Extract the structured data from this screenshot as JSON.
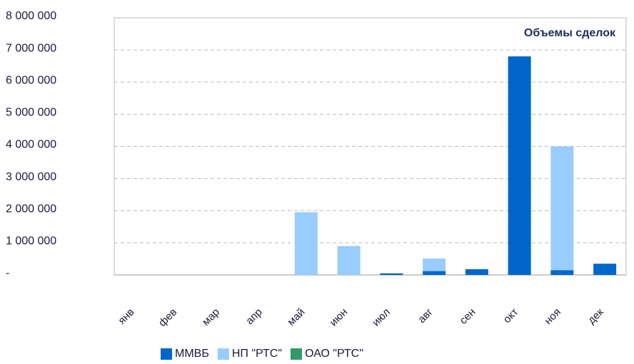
{
  "chart_data": {
    "type": "bar",
    "stacked": true,
    "title": "Объемы сделок",
    "categories": [
      "янв",
      "фев",
      "мар",
      "апр",
      "май",
      "июн",
      "июл",
      "авг",
      "сен",
      "окт",
      "ноя",
      "дек"
    ],
    "series": [
      {
        "name": "ММВБ",
        "color": "#0066cc",
        "values": [
          0,
          0,
          0,
          0,
          0,
          0,
          50000,
          120000,
          180000,
          6800000,
          150000,
          350000
        ]
      },
      {
        "name": "НП \"РТС\"",
        "color": "#99ccff",
        "values": [
          0,
          0,
          0,
          0,
          1950000,
          900000,
          0,
          390000,
          0,
          0,
          3850000,
          0
        ]
      },
      {
        "name": "ОАО \"РТС\"",
        "color": "#339966",
        "values": [
          0,
          0,
          0,
          0,
          0,
          0,
          0,
          0,
          0,
          0,
          0,
          0
        ]
      }
    ],
    "ylim": [
      0,
      8000000
    ],
    "yticks": [
      {
        "value": 0,
        "label": "-"
      },
      {
        "value": 1000000,
        "label": "1 000 000"
      },
      {
        "value": 2000000,
        "label": "2 000 000"
      },
      {
        "value": 3000000,
        "label": "3 000 000"
      },
      {
        "value": 4000000,
        "label": "4 000 000"
      },
      {
        "value": 5000000,
        "label": "5 000 000"
      },
      {
        "value": 6000000,
        "label": "6 000 000"
      },
      {
        "value": 7000000,
        "label": "7 000 000"
      },
      {
        "value": 8000000,
        "label": "8 000 000"
      }
    ],
    "grid": true,
    "legend": "bottom"
  }
}
